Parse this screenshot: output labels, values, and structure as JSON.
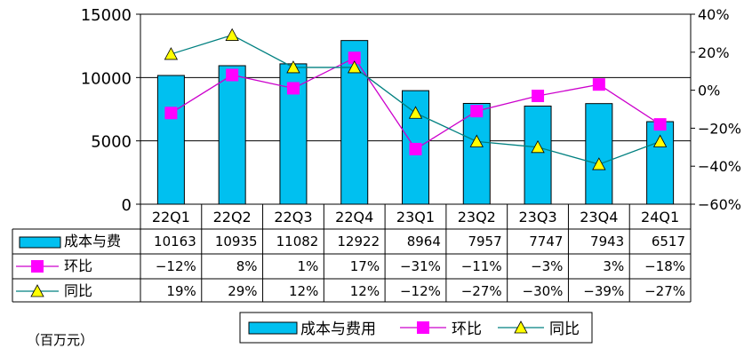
{
  "chart_data": {
    "type": "bar",
    "categories": [
      "22Q1",
      "22Q2",
      "22Q3",
      "22Q4",
      "23Q1",
      "23Q2",
      "23Q3",
      "23Q4",
      "24Q1"
    ],
    "series": [
      {
        "name": "成本与费用",
        "table_label": "成本与费",
        "kind": "bar",
        "axis": "left",
        "values": [
          10163,
          10935,
          11082,
          12922,
          8964,
          7957,
          7747,
          7943,
          6517
        ],
        "labels": [
          "10163",
          "10935",
          "11082",
          "12922",
          "8964",
          "7957",
          "7747",
          "7943",
          "6517"
        ]
      },
      {
        "name": "环比",
        "kind": "line",
        "axis": "right",
        "values": [
          -12,
          8,
          1,
          17,
          -31,
          -11,
          -3,
          3,
          -18
        ],
        "labels": [
          "−12%",
          "8%",
          "1%",
          "17%",
          "−31%",
          "−11%",
          "−3%",
          "3%",
          "−18%"
        ]
      },
      {
        "name": "同比",
        "kind": "line",
        "axis": "right",
        "values": [
          19,
          29,
          12,
          12,
          -12,
          -27,
          -30,
          -39,
          -27
        ],
        "labels": [
          "19%",
          "29%",
          "12%",
          "12%",
          "−12%",
          "−27%",
          "−30%",
          "−39%",
          "−27%"
        ]
      }
    ],
    "y_left": {
      "ylim": [
        0,
        15000
      ],
      "ticks": [
        "0",
        "5000",
        "10000",
        "15000"
      ],
      "tick_values": [
        0,
        5000,
        10000,
        15000
      ]
    },
    "y_right": {
      "ylim": [
        -60,
        40
      ],
      "ticks": [
        "−60%",
        "−40%",
        "−20%",
        "0%",
        "20%",
        "40%"
      ],
      "tick_values": [
        -60,
        -40,
        -20,
        0,
        20,
        40
      ]
    },
    "grid": "horizontal",
    "legend_placement": "bottom",
    "colors": {
      "bar": "#00C0F0",
      "mom_line": "#CC00CC",
      "mom_marker": "#FF00FF",
      "yoy_line": "#008080",
      "yoy_marker": "#FFFF00"
    },
    "note": "（百万元）"
  }
}
